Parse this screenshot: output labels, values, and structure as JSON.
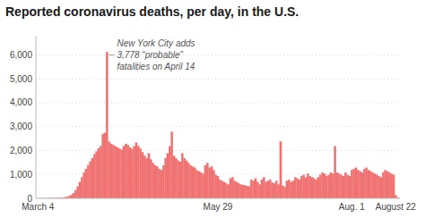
{
  "chart_data": {
    "type": "bar",
    "title": "Reported coronavirus deaths, per day, in the U.S.",
    "annotation": [
      "New York City adds",
      "3,778 “probable”",
      "fatalities on April 14"
    ],
    "color": "#f07070",
    "grid": true,
    "ylim": [
      0,
      6800
    ],
    "yticks": [
      0,
      {
        "value": 1000,
        "label": "1,000"
      },
      {
        "value": 2000,
        "label": "2,000"
      },
      {
        "value": 3000,
        "label": "3,000"
      },
      {
        "value": 4000,
        "label": "4,000"
      },
      {
        "value": 5000,
        "label": "5,000"
      },
      {
        "value": 6000,
        "label": "6,000"
      }
    ],
    "categories": [
      "March 4",
      null,
      null,
      null,
      null,
      null,
      null,
      null,
      null,
      null,
      null,
      null,
      null,
      null,
      null,
      null,
      null,
      null,
      null,
      null,
      null,
      null,
      null,
      null,
      null,
      null,
      null,
      null,
      null,
      null,
      null,
      null,
      null,
      null,
      null,
      null,
      null,
      null,
      null,
      null,
      null,
      null,
      null,
      null,
      null,
      null,
      null,
      null,
      null,
      null,
      null,
      null,
      null,
      null,
      null,
      null,
      null,
      null,
      null,
      null,
      null,
      null,
      null,
      null,
      null,
      null,
      null,
      null,
      null,
      null,
      null,
      null,
      null,
      null,
      null,
      null,
      null,
      null,
      null,
      null,
      null,
      null,
      null,
      null,
      null,
      null,
      "May 29",
      null,
      null,
      null,
      null,
      null,
      null,
      null,
      null,
      null,
      null,
      null,
      null,
      null,
      null,
      null,
      null,
      null,
      null,
      null,
      null,
      null,
      null,
      null,
      null,
      null,
      null,
      null,
      null,
      null,
      null,
      null,
      null,
      null,
      null,
      null,
      null,
      null,
      null,
      null,
      null,
      null,
      null,
      null,
      null,
      null,
      null,
      null,
      null,
      null,
      null,
      null,
      null,
      null,
      null,
      null,
      null,
      null,
      null,
      null,
      null,
      null,
      null,
      null,
      "Aug. 1",
      null,
      null,
      null,
      null,
      null,
      null,
      null,
      null,
      null,
      null,
      null,
      null,
      null,
      null,
      null,
      null,
      null,
      null,
      null,
      null,
      "August 22",
      null
    ],
    "values": [
      1,
      1,
      2,
      2,
      3,
      4,
      5,
      7,
      10,
      13,
      17,
      22,
      30,
      45,
      68,
      100,
      145,
      220,
      340,
      490,
      680,
      880,
      1080,
      1230,
      1390,
      1540,
      1680,
      1840,
      1960,
      2090,
      2190,
      2680,
      2740,
      6120,
      2380,
      2280,
      2230,
      2180,
      2130,
      2080,
      2030,
      2180,
      2280,
      2230,
      2130,
      2060,
      2180,
      2330,
      2180,
      2080,
      1930,
      1780,
      1680,
      1880,
      1630,
      1480,
      1380,
      1330,
      1230,
      1180,
      1380,
      1680,
      1880,
      2180,
      2780,
      1780,
      1680,
      1580,
      1530,
      1880,
      1680,
      1580,
      1480,
      1380,
      1330,
      1280,
      1180,
      1130,
      1080,
      1030,
      1380,
      1480,
      1280,
      1330,
      1180,
      980,
      930,
      780,
      730,
      680,
      630,
      580,
      830,
      880,
      730,
      680,
      630,
      580,
      560,
      540,
      520,
      500,
      780,
      730,
      830,
      680,
      580,
      780,
      880,
      680,
      730,
      780,
      660,
      630,
      730,
      580,
      2380,
      530,
      480,
      730,
      780,
      680,
      730,
      880,
      830,
      780,
      930,
      980,
      880,
      1030,
      930,
      880,
      830,
      780,
      880,
      980,
      1080,
      1030,
      930,
      980,
      1080,
      1030,
      2180,
      1080,
      1030,
      980,
      930,
      1080,
      980,
      930,
      1180,
      1230,
      1280,
      1180,
      1130,
      1080,
      1230,
      1280,
      1180,
      1130,
      1080,
      1030,
      980,
      930,
      880,
      1080,
      1180,
      1130,
      1080,
      1030,
      980,
      130,
      40
    ]
  }
}
